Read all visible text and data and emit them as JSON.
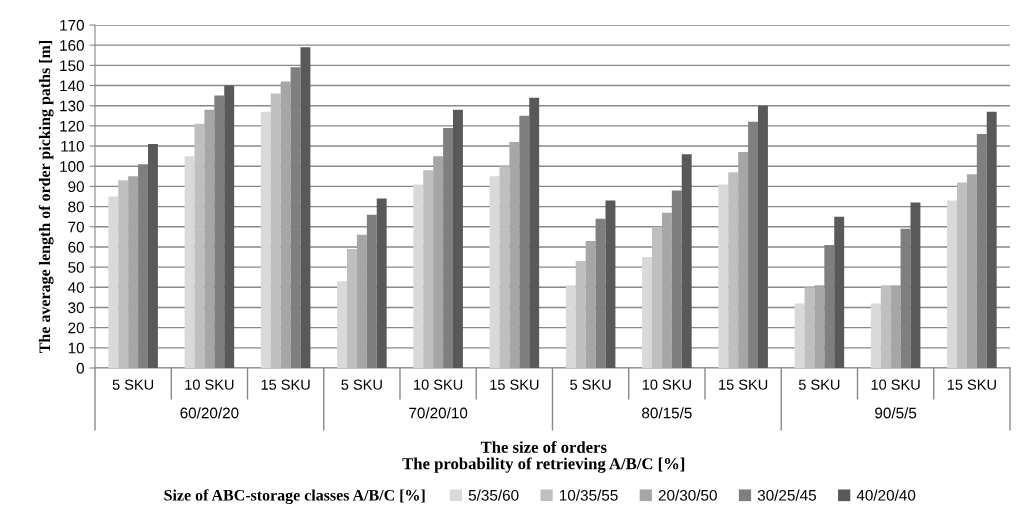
{
  "chart_data": {
    "type": "bar",
    "ylabel": "The average length of order picking paths [m]",
    "xlabel": "The size of orders\nThe probability of retrieving A/B/C [%]",
    "legend_title": "Size of ABC-storage classes A/B/C [%]",
    "categories": [
      "5 SKU",
      "10 SKU",
      "15 SKU",
      "5 SKU",
      "10 SKU",
      "15 SKU",
      "5 SKU",
      "10 SKU",
      "15 SKU",
      "5 SKU",
      "10 SKU",
      "15 SKU"
    ],
    "annotations": [
      "60/20/20",
      "70/20/10",
      "80/15/5",
      "90/5/5"
    ],
    "series": [
      {
        "name": "5/35/60",
        "color": "#d9d9d9",
        "values": [
          85,
          105,
          127,
          43,
          91,
          95,
          41,
          55,
          91,
          32,
          32,
          83
        ]
      },
      {
        "name": "10/35/55",
        "color": "#bfbfbf",
        "values": [
          93,
          121,
          136,
          59,
          98,
          100,
          53,
          70,
          97,
          40,
          41,
          92
        ]
      },
      {
        "name": "20/30/50",
        "color": "#a6a6a6",
        "values": [
          95,
          128,
          142,
          66,
          105,
          112,
          63,
          77,
          107,
          41,
          41,
          96
        ]
      },
      {
        "name": "30/25/45",
        "color": "#7f7f7f",
        "values": [
          101,
          135,
          149,
          76,
          119,
          125,
          74,
          88,
          122,
          61,
          69,
          116
        ]
      },
      {
        "name": "40/20/40",
        "color": "#595959",
        "values": [
          111,
          140,
          159,
          84,
          128,
          134,
          83,
          106,
          130,
          75,
          82,
          127
        ]
      }
    ],
    "ylim": [
      0,
      170
    ],
    "yticks": [
      0,
      10,
      20,
      30,
      40,
      50,
      60,
      70,
      80,
      90,
      100,
      110,
      120,
      130,
      140,
      150,
      160,
      170
    ],
    "grid": "y",
    "legend": "bottom"
  }
}
